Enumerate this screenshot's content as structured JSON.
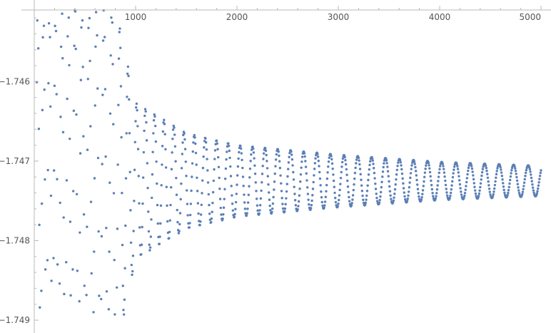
{
  "chart_data": {
    "type": "scatter",
    "title": "",
    "xlabel": "",
    "ylabel": "",
    "xlim": [
      0,
      5000
    ],
    "ylim": [
      -1.749,
      -1.7451
    ],
    "x_ticks": [
      {
        "value": 1000,
        "label": "1000"
      },
      {
        "value": 2000,
        "label": "2000"
      },
      {
        "value": 3000,
        "label": "3000"
      },
      {
        "value": 4000,
        "label": "4000"
      },
      {
        "value": 5000,
        "label": "5000"
      }
    ],
    "y_ticks": [
      {
        "value": -1.746,
        "label": "−1.746"
      },
      {
        "value": -1.747,
        "label": "−1.747"
      },
      {
        "value": -1.748,
        "label": "−1.748"
      },
      {
        "value": -1.749,
        "label": "−1.749"
      }
    ],
    "grid": false,
    "point_color": "#5b7fb5",
    "series": [
      {
        "x_start": 25,
        "x_end": 5000,
        "x_step": 5,
        "center": -1.74725,
        "envelope": [
          {
            "x": 0,
            "amp": 0.0022
          },
          {
            "x": 800,
            "amp": 0.0022
          },
          {
            "x": 1000,
            "amp": 0.00098
          },
          {
            "x": 1500,
            "amp": 0.0006
          },
          {
            "x": 2000,
            "amp": 0.00045
          },
          {
            "x": 3000,
            "amp": 0.00033
          },
          {
            "x": 4000,
            "amp": 0.00024
          },
          {
            "x": 5000,
            "amp": 0.00019
          }
        ],
        "period": [
          {
            "x": 0,
            "p": 55
          },
          {
            "x": 1000,
            "p": 85
          },
          {
            "x": 2000,
            "p": 120
          },
          {
            "x": 3000,
            "p": 135
          },
          {
            "x": 5000,
            "p": 145
          }
        ]
      }
    ]
  }
}
